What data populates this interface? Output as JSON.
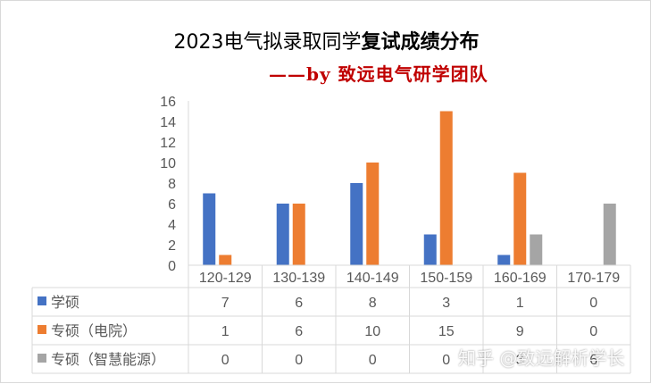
{
  "chart_data": {
    "type": "bar",
    "title_part1": "2023电气拟录取同学",
    "title_part2": "复试成绩分布",
    "subtitle": "——by 致远电气研学团队",
    "categories": [
      "120-129",
      "130-139",
      "140-149",
      "150-159",
      "160-169",
      "170-179"
    ],
    "ylim": [
      0,
      16
    ],
    "yticks": [
      "0",
      "2",
      "4",
      "6",
      "8",
      "10",
      "12",
      "14",
      "16"
    ],
    "grid": false,
    "legend": "data-table",
    "series": [
      {
        "name": "学硕",
        "color": "#4472c4",
        "values": [
          7,
          6,
          8,
          3,
          1,
          0
        ]
      },
      {
        "name": "专硕（电院）",
        "color": "#ed7d31",
        "values": [
          1,
          6,
          10,
          15,
          9,
          0
        ]
      },
      {
        "name": "专硕（智慧能源）",
        "color": "#a5a5a5",
        "values": [
          0,
          0,
          0,
          0,
          3,
          6
        ]
      }
    ]
  },
  "watermark": "知乎 @致远解析学长"
}
